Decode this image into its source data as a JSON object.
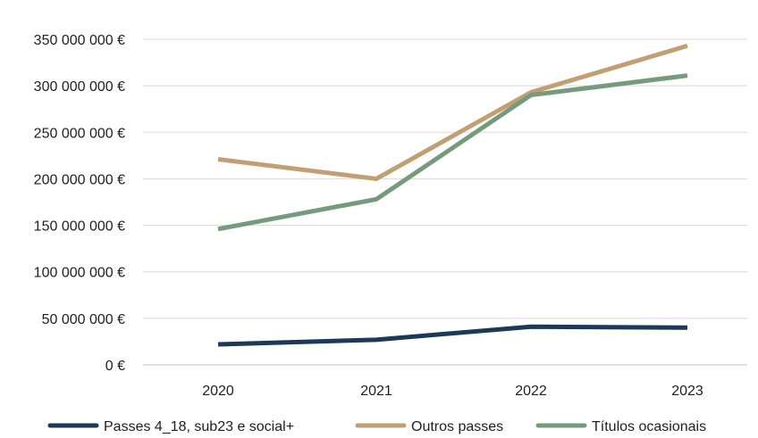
{
  "chart_data": {
    "type": "line",
    "title": "",
    "xlabel": "",
    "ylabel": "",
    "categories": [
      "2020",
      "2021",
      "2022",
      "2023"
    ],
    "ylim": [
      0,
      350000000
    ],
    "yticks": [
      {
        "value": 0,
        "label": "0 €"
      },
      {
        "value": 50000000,
        "label": "50 000 000 €"
      },
      {
        "value": 100000000,
        "label": "100 000 000 €"
      },
      {
        "value": 150000000,
        "label": "150 000 000 €"
      },
      {
        "value": 200000000,
        "label": "200 000 000 €"
      },
      {
        "value": 250000000,
        "label": "250 000 000 €"
      },
      {
        "value": 300000000,
        "label": "300 000 000 €"
      },
      {
        "value": 350000000,
        "label": "350 000 000 €"
      }
    ],
    "grid": true,
    "legend": "bottom",
    "series": [
      {
        "name": "Passes 4_18, sub23 e social+",
        "color": "#1c3a57",
        "values": [
          22000000,
          27000000,
          41000000,
          40000000
        ]
      },
      {
        "name": "Outros passes",
        "color": "#c29f73",
        "values": [
          221000000,
          200000000,
          293000000,
          343000000
        ]
      },
      {
        "name": "Títulos ocasionais",
        "color": "#759b7c",
        "values": [
          146000000,
          178000000,
          290000000,
          311000000
        ]
      }
    ]
  }
}
